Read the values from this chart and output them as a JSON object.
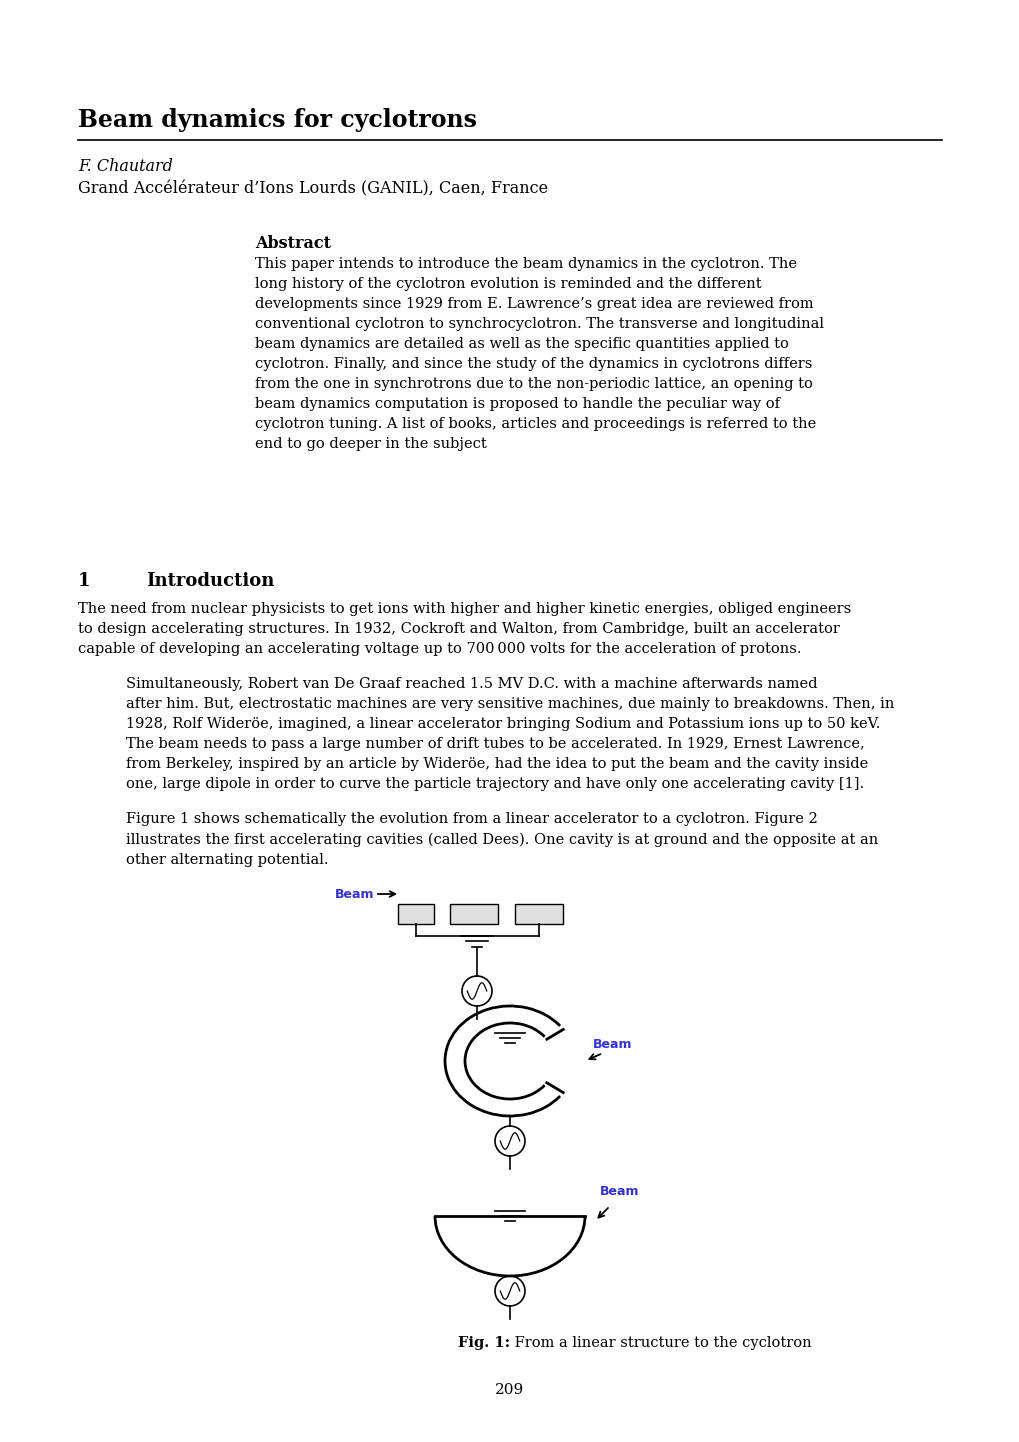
{
  "title": "Beam dynamics for cyclotrons",
  "author_line1": "F. Chautard",
  "author_line2": "Grand Accélérateur d’Ions Lourds (GANIL), Caen, France",
  "abstract_title": "Abstract",
  "abstract_text": "This paper intends to introduce the beam dynamics in the cyclotron. The\nlong history of the cyclotron evolution is reminded and the different\ndevelopments since 1929 from E. Lawrence’s great idea are reviewed from\nconventional cyclotron to synchrocyclotron. The transverse and longitudinal\nbeam dynamics are detailed as well as the specific quantities applied to\ncyclotron. Finally, and since the study of the dynamics in cyclotrons differs\nfrom the one in synchrotrons due to the non-periodic lattice, an opening to\nbeam dynamics computation is proposed to handle the peculiar way of\ncyclotron tuning. A list of books, articles and proceedings is referred to the\nend to go deeper in the subject",
  "section1_num": "1",
  "section1_title": "Introduction",
  "para1": "The need from nuclear physicists to get ions with higher and higher kinetic energies, obliged engineers\nto design accelerating structures. In 1932, Cockroft and Walton, from Cambridge, built an accelerator\ncapable of developing an accelerating voltage up to 700 000 volts for the acceleration of protons.",
  "para2": "Simultaneously, Robert van De Graaf reached 1.5 MV D.C. with a machine afterwards named\nafter him. But, electrostatic machines are very sensitive machines, due mainly to breakdowns. Then, in\n1928, Rolf Wideröe, imagined, a linear accelerator bringing Sodium and Potassium ions up to 50 keV.\nThe beam needs to pass a large number of drift tubes to be accelerated. In 1929, Ernest Lawrence,\nfrom Berkeley, inspired by an article by Wideröe, had the idea to put the beam and the cavity inside\none, large dipole in order to curve the particle trajectory and have only one accelerating cavity [1].",
  "para3": "Figure 1 shows schematically the evolution from a linear accelerator to a cyclotron. Figure 2\nillustrates the first accelerating cavities (called Dees). One cavity is at ground and the opposite at an\nother alternating potential.",
  "fig_caption_bold": "Fig. 1:",
  "fig_caption_rest": " From a linear structure to the cyclotron",
  "page_number": "209",
  "bg_color": "#ffffff",
  "text_color": "#000000",
  "beam_color": "#3333cc"
}
